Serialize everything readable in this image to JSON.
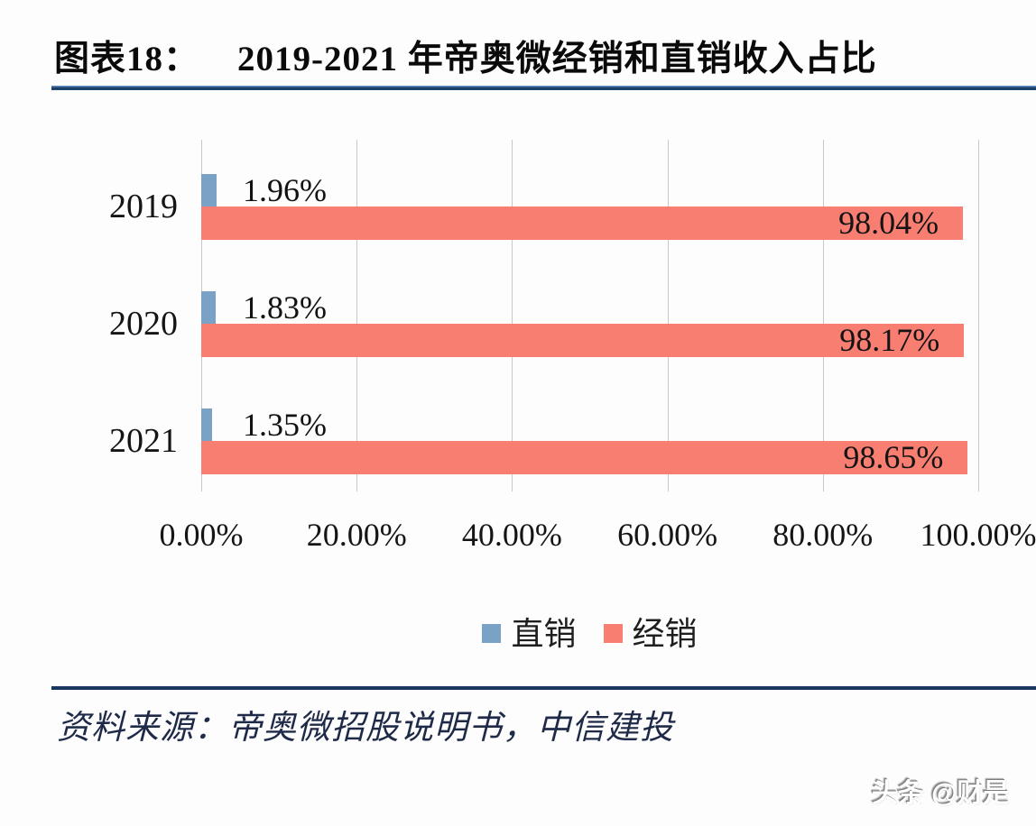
{
  "header": {
    "figure_label": "图表18：",
    "title": "2019-2021 年帝奥微经销和直销收入占比"
  },
  "chart_data": {
    "type": "bar",
    "orientation": "horizontal",
    "title": "2019-2021 年帝奥微经销和直销收入占比",
    "categories": [
      "2019",
      "2020",
      "2021"
    ],
    "series": [
      {
        "name": "直销",
        "color": "#7AA2C6",
        "values": [
          1.96,
          1.83,
          1.35
        ],
        "labels": [
          "1.96%",
          "1.83%",
          "1.35%"
        ]
      },
      {
        "name": "经销",
        "color": "#F87E72",
        "values": [
          98.04,
          98.17,
          98.65
        ],
        "labels": [
          "98.04%",
          "98.17%",
          "98.65%"
        ]
      }
    ],
    "x_ticks": [
      "0.00%",
      "20.00%",
      "40.00%",
      "60.00%",
      "80.00%",
      "100.00%"
    ],
    "xlim": [
      0,
      100
    ],
    "grid": "vertical",
    "legend_position": "bottom"
  },
  "footer": {
    "source": "资料来源：帝奥微招股说明书，中信建投",
    "watermark": "头条 @财是"
  }
}
